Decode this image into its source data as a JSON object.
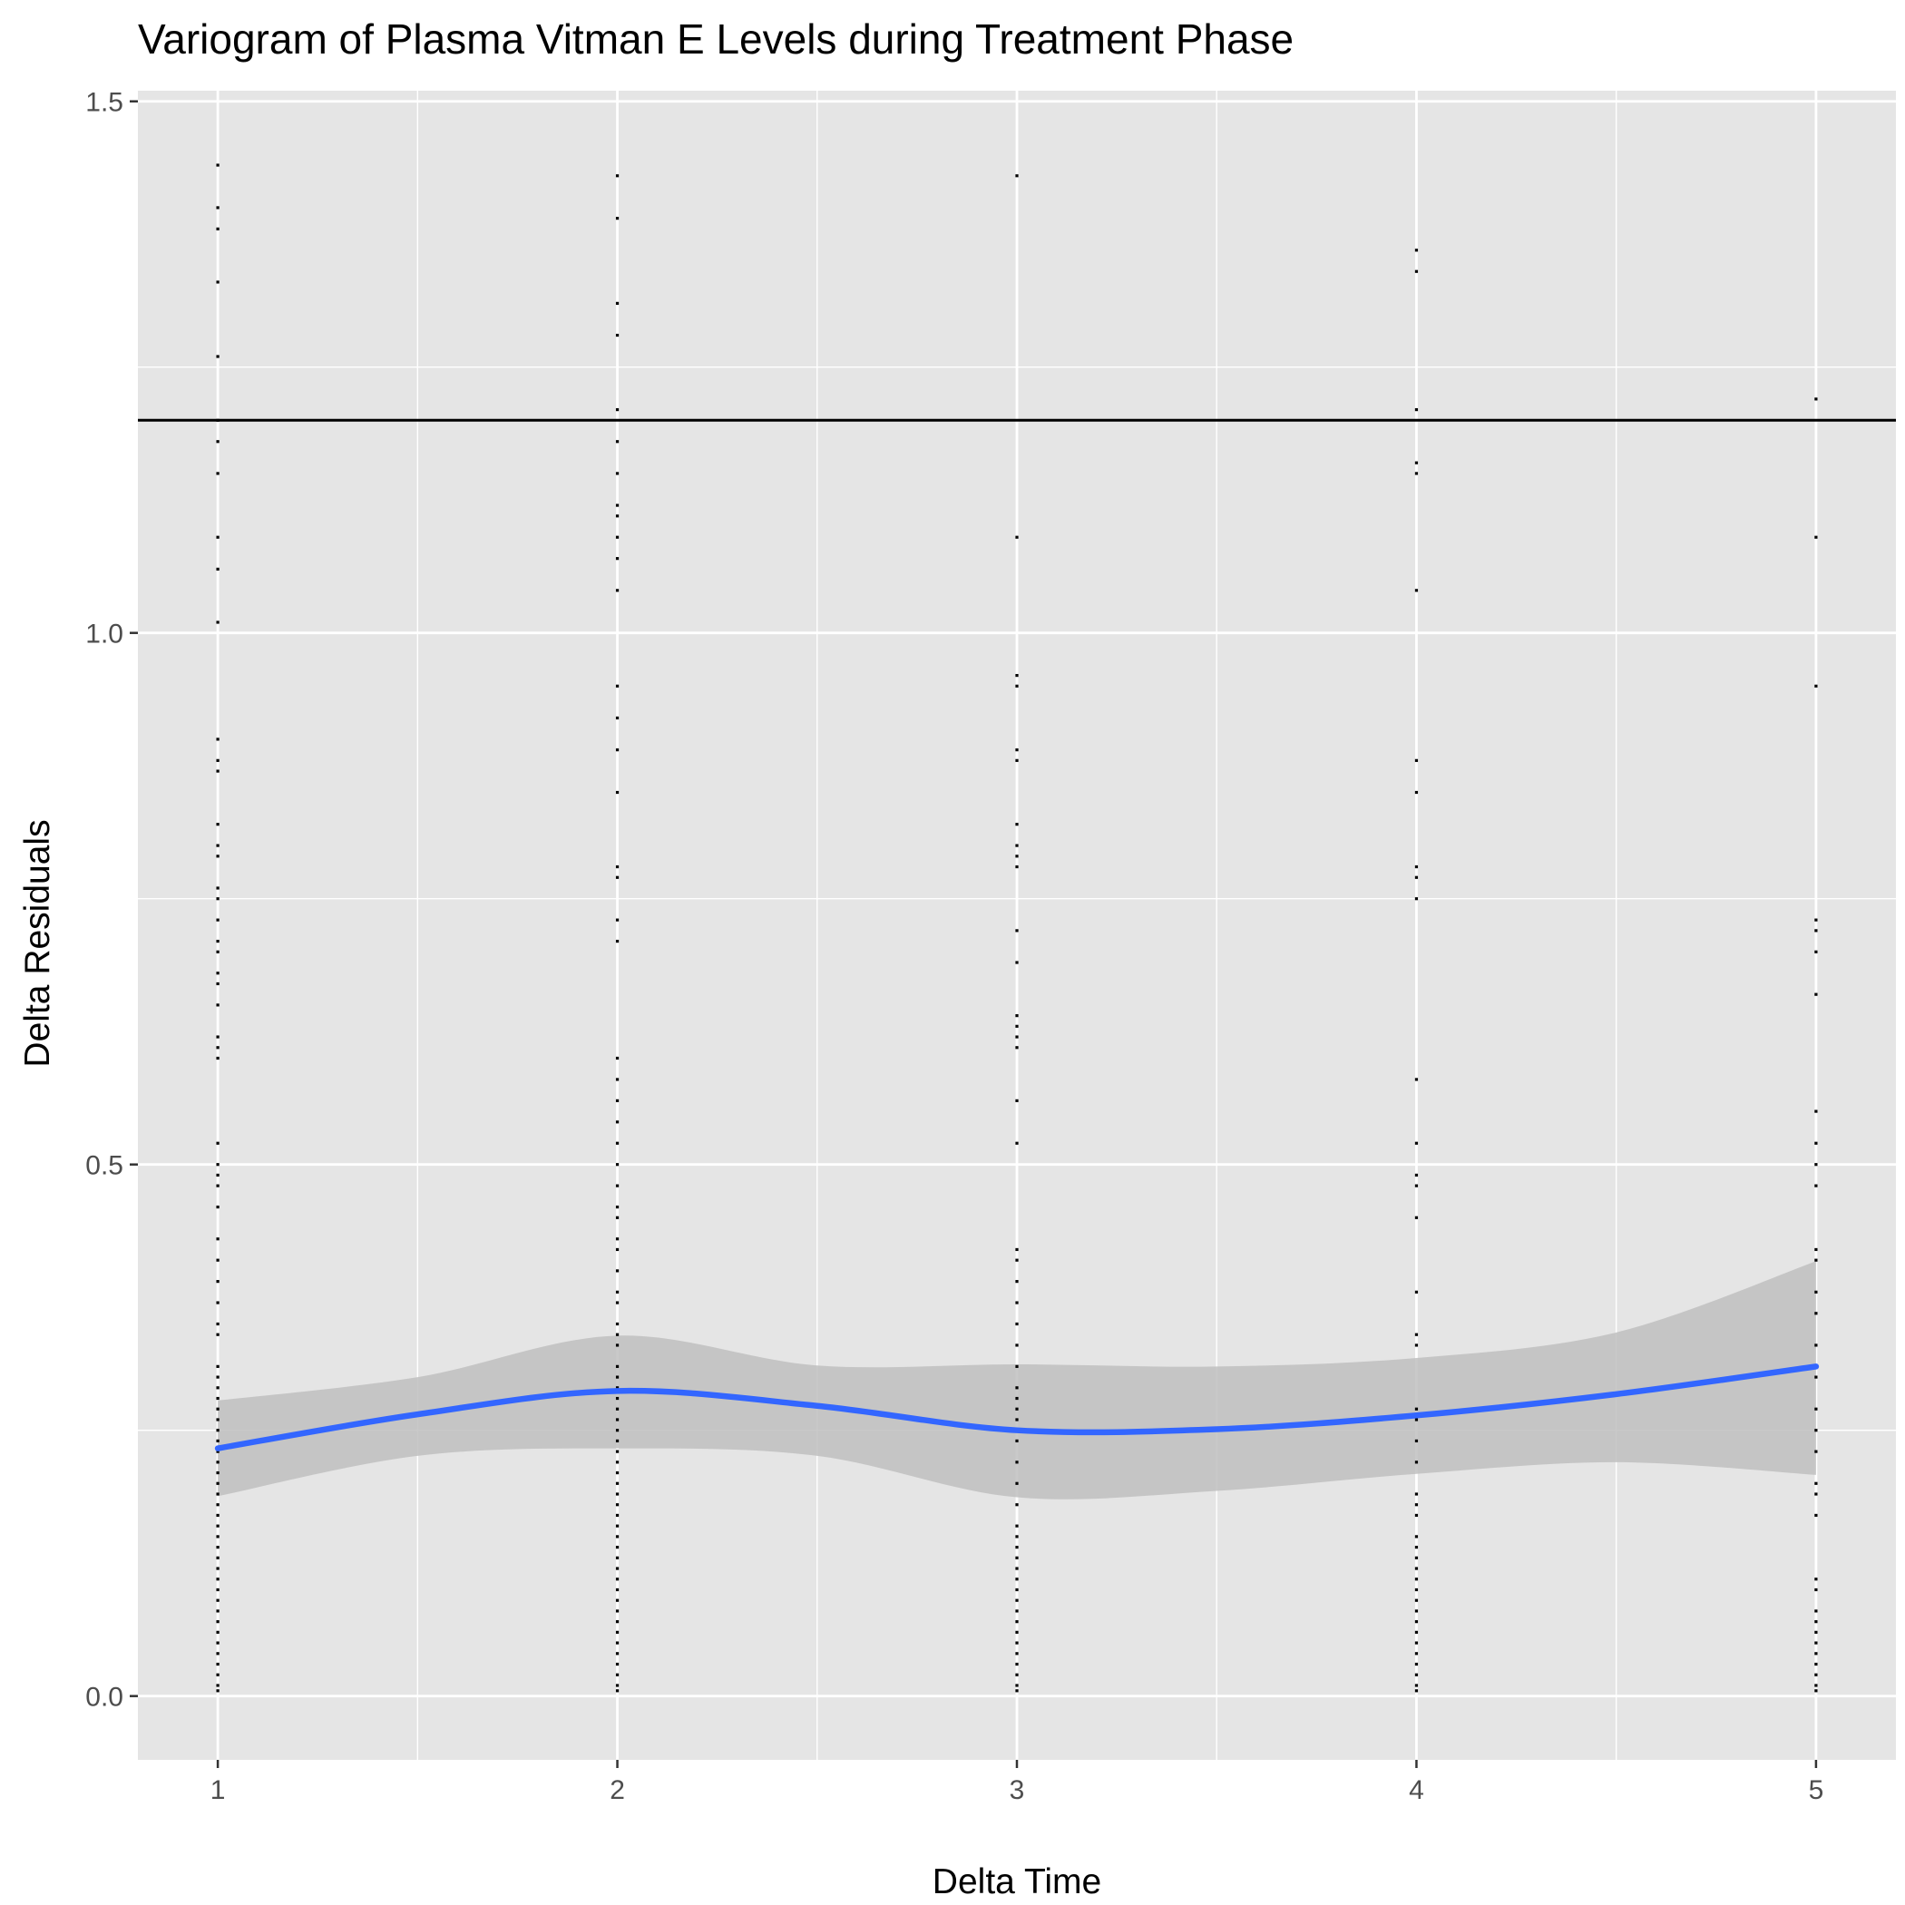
{
  "chart_data": {
    "type": "scatter",
    "title": "Variogram of Plasma Vitman E Levels during Treatment Phase",
    "xlabel": "Delta Time",
    "ylabel": "Delta Residuals",
    "xlim": [
      0.8,
      5.2
    ],
    "ylim": [
      -0.06,
      1.51
    ],
    "x_ticks": [
      1,
      2,
      3,
      4,
      5
    ],
    "x_tick_labels": [
      "1",
      "2",
      "3",
      "4",
      "5"
    ],
    "y_ticks": [
      0.0,
      0.5,
      1.0,
      1.5
    ],
    "y_tick_labels": [
      "0.0",
      "0.5",
      "1.0",
      "1.5"
    ],
    "grid": true,
    "legend": "none",
    "colors": {
      "panel": "#e5e5e5",
      "grid": "#ffffff",
      "points": "#000000",
      "smooth_line": "#3366ff",
      "ribbon": "#bfbfbf",
      "reference_line": "#000000"
    },
    "reference_hline": 1.2,
    "points": [
      {
        "x": 1,
        "y": [
          1.44,
          1.4,
          1.38,
          1.33,
          1.26,
          1.2,
          1.18,
          1.15,
          1.09,
          1.06,
          1.01,
          0.9,
          0.88,
          0.87,
          0.82,
          0.8,
          0.79,
          0.76,
          0.75,
          0.73,
          0.71,
          0.7,
          0.68,
          0.67,
          0.65,
          0.62,
          0.61,
          0.6,
          0.52,
          0.5,
          0.49,
          0.48,
          0.46,
          0.43,
          0.41,
          0.39,
          0.37,
          0.35,
          0.34,
          0.31,
          0.3,
          0.29,
          0.28,
          0.27,
          0.26,
          0.25,
          0.24,
          0.23,
          0.22,
          0.21,
          0.2,
          0.19,
          0.18,
          0.17,
          0.16,
          0.15,
          0.14,
          0.13,
          0.12,
          0.11,
          0.1,
          0.09,
          0.08,
          0.07,
          0.06,
          0.05,
          0.04,
          0.03,
          0.02,
          0.01,
          0.005
        ]
      },
      {
        "x": 2,
        "y": [
          1.43,
          1.39,
          1.31,
          1.28,
          1.21,
          1.18,
          1.15,
          1.12,
          1.11,
          1.09,
          1.07,
          1.04,
          0.95,
          0.92,
          0.89,
          0.85,
          0.78,
          0.77,
          0.73,
          0.71,
          0.6,
          0.58,
          0.56,
          0.54,
          0.52,
          0.5,
          0.48,
          0.46,
          0.45,
          0.43,
          0.42,
          0.4,
          0.38,
          0.37,
          0.35,
          0.34,
          0.33,
          0.31,
          0.3,
          0.29,
          0.28,
          0.27,
          0.26,
          0.25,
          0.24,
          0.23,
          0.22,
          0.21,
          0.2,
          0.19,
          0.18,
          0.17,
          0.16,
          0.15,
          0.14,
          0.13,
          0.12,
          0.11,
          0.1,
          0.09,
          0.08,
          0.07,
          0.06,
          0.05,
          0.04,
          0.03,
          0.02,
          0.01,
          0.005
        ]
      },
      {
        "x": 3,
        "y": [
          1.43,
          1.09,
          0.96,
          0.95,
          0.89,
          0.88,
          0.82,
          0.8,
          0.79,
          0.78,
          0.72,
          0.69,
          0.64,
          0.63,
          0.62,
          0.61,
          0.56,
          0.52,
          0.42,
          0.41,
          0.39,
          0.37,
          0.35,
          0.33,
          0.31,
          0.29,
          0.28,
          0.27,
          0.26,
          0.25,
          0.24,
          0.22,
          0.2,
          0.18,
          0.16,
          0.15,
          0.14,
          0.13,
          0.12,
          0.11,
          0.1,
          0.09,
          0.08,
          0.07,
          0.06,
          0.05,
          0.04,
          0.03,
          0.02,
          0.01,
          0.005
        ]
      },
      {
        "x": 4,
        "y": [
          1.36,
          1.34,
          1.21,
          1.16,
          1.15,
          1.04,
          0.88,
          0.85,
          0.78,
          0.77,
          0.75,
          0.58,
          0.52,
          0.49,
          0.48,
          0.45,
          0.38,
          0.34,
          0.33,
          0.27,
          0.26,
          0.24,
          0.22,
          0.19,
          0.18,
          0.17,
          0.15,
          0.14,
          0.13,
          0.12,
          0.11,
          0.1,
          0.09,
          0.08,
          0.07,
          0.06,
          0.05,
          0.04,
          0.03,
          0.02,
          0.01,
          0.005
        ]
      },
      {
        "x": 5,
        "y": [
          1.22,
          1.09,
          0.95,
          0.73,
          0.72,
          0.7,
          0.66,
          0.55,
          0.52,
          0.5,
          0.48,
          0.42,
          0.41,
          0.38,
          0.36,
          0.33,
          0.3,
          0.27,
          0.25,
          0.23,
          0.2,
          0.19,
          0.17,
          0.11,
          0.1,
          0.08,
          0.07,
          0.06,
          0.05,
          0.04,
          0.03,
          0.02,
          0.01,
          0.005
        ]
      }
    ],
    "smooth": {
      "x": [
        1.0,
        1.5,
        2.0,
        2.5,
        3.0,
        3.5,
        4.0,
        4.5,
        5.0
      ],
      "y": [
        0.233,
        0.265,
        0.287,
        0.273,
        0.25,
        0.251,
        0.264,
        0.284,
        0.31
      ],
      "lower": [
        0.188,
        0.226,
        0.233,
        0.226,
        0.187,
        0.193,
        0.209,
        0.22,
        0.208
      ],
      "upper": [
        0.278,
        0.3,
        0.339,
        0.311,
        0.312,
        0.31,
        0.318,
        0.342,
        0.409
      ]
    }
  }
}
